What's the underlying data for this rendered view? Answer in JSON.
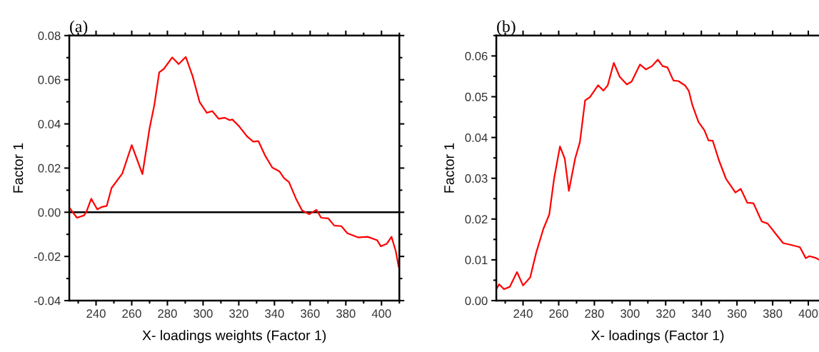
{
  "chart_data": [
    {
      "type": "line",
      "title": "(a)",
      "xlabel": "X- loadings weights (Factor 1)",
      "ylabel": "Factor 1",
      "grid": false,
      "legend": false,
      "marker": "none",
      "line_style": "solid",
      "xlim": [
        225,
        410
      ],
      "xticks": [
        240,
        260,
        280,
        300,
        320,
        340,
        360,
        380,
        400
      ],
      "ylim": [
        -0.04,
        0.08
      ],
      "yticks": [
        {
          "value": -0.04,
          "label": "-0.04"
        },
        {
          "value": -0.02,
          "label": "-0.02"
        },
        {
          "value": 0,
          "label": "0.00"
        },
        {
          "value": 0.02,
          "label": "0.02"
        },
        {
          "value": 0.04,
          "label": "0.04"
        },
        {
          "value": 0.06,
          "label": "0.06"
        },
        {
          "value": 0.08,
          "label": "0.08"
        }
      ],
      "ref_lines": [
        {
          "axis": "y",
          "value": 0,
          "color": "#000000",
          "line_style": "solid"
        }
      ],
      "series": [
        {
          "color": "#ff0000",
          "x": [
            225.3,
            229.3,
            233.3,
            234.6,
            237.3,
            240.7,
            243.3,
            246,
            248.7,
            254.7,
            260,
            266,
            270,
            272.7,
            275.4,
            278,
            282.7,
            286.3,
            290.3,
            294.1,
            298.1,
            302.1,
            305.1,
            308.8,
            312.1,
            314.8,
            316.4,
            320.1,
            324.8,
            328.1,
            331,
            334.8,
            338.8,
            342.8,
            345.5,
            348.1,
            352.1,
            355.5,
            359.5,
            363.5,
            366.2,
            370.2,
            373.5,
            377.5,
            380.9,
            386.9,
            392.2,
            397.6,
            399.6,
            402.9,
            405.6,
            408,
            409.6
          ],
          "values": [
            0.0018,
            -0.0025,
            -0.0014,
            0.0002,
            0.0061,
            0.0013,
            0.0024,
            0.0029,
            0.011,
            0.0175,
            0.0304,
            0.0173,
            0.038,
            0.0487,
            0.0633,
            0.0649,
            0.0701,
            0.0671,
            0.0703,
            0.0617,
            0.0498,
            0.045,
            0.0458,
            0.0423,
            0.0428,
            0.0417,
            0.042,
            0.039,
            0.0342,
            0.032,
            0.0322,
            0.0256,
            0.0202,
            0.0185,
            0.0153,
            0.0137,
            0.0061,
            0.0008,
            -0.0009,
            0.0011,
            -0.0025,
            -0.0028,
            -0.006,
            -0.0063,
            -0.0095,
            -0.0114,
            -0.0111,
            -0.0127,
            -0.0154,
            -0.0143,
            -0.0111,
            -0.0176,
            -0.0246
          ]
        }
      ]
    },
    {
      "type": "line",
      "title": "(b)",
      "xlabel": "X- loadings (Factor 1)",
      "ylabel": "Factor 1",
      "grid": false,
      "legend": false,
      "marker": "none",
      "line_style": "solid",
      "xlim": [
        225,
        406
      ],
      "xticks": [
        240,
        260,
        280,
        300,
        320,
        340,
        360,
        380,
        400
      ],
      "ylim": [
        0,
        0.065
      ],
      "yticks": [
        {
          "value": 0,
          "label": "0.00"
        },
        {
          "value": 0.01,
          "label": "0.01"
        },
        {
          "value": 0.02,
          "label": "0.02"
        },
        {
          "value": 0.03,
          "label": "0.03"
        },
        {
          "value": 0.04,
          "label": "0.04"
        },
        {
          "value": 0.05,
          "label": "0.05"
        },
        {
          "value": 0.06,
          "label": "0.06"
        }
      ],
      "series": [
        {
          "color": "#ff0000",
          "x": [
            225,
            226.6,
            229.3,
            232.6,
            236.6,
            240,
            244,
            247.4,
            251.4,
            254.7,
            257.4,
            260.7,
            263.4,
            265.7,
            269.2,
            271.9,
            274.8,
            277.5,
            282.1,
            285.1,
            287.5,
            290.9,
            294.2,
            298.2,
            300.9,
            305.6,
            308.9,
            312.3,
            315.6,
            318.3,
            321,
            324.3,
            327.3,
            331,
            333,
            335,
            338.4,
            341.7,
            344,
            346.4,
            349.8,
            353.8,
            359.1,
            362.1,
            365.8,
            369.2,
            373.9,
            377.2,
            382.6,
            385.9,
            389.9,
            395.3,
            398.6,
            400.6,
            404,
            405.7
          ],
          "values": [
            0.0028,
            0.004,
            0.0028,
            0.0034,
            0.007,
            0.0037,
            0.0057,
            0.0118,
            0.0176,
            0.0211,
            0.0299,
            0.0378,
            0.0348,
            0.0269,
            0.0348,
            0.0389,
            0.0491,
            0.0499,
            0.0528,
            0.0515,
            0.0528,
            0.0583,
            0.0549,
            0.053,
            0.0537,
            0.0579,
            0.0567,
            0.0575,
            0.0591,
            0.0575,
            0.0572,
            0.054,
            0.0538,
            0.0527,
            0.0514,
            0.0479,
            0.0438,
            0.0418,
            0.0393,
            0.0392,
            0.0345,
            0.0299,
            0.0265,
            0.0274,
            0.024,
            0.0239,
            0.0194,
            0.0189,
            0.0159,
            0.0141,
            0.0137,
            0.0131,
            0.0104,
            0.0109,
            0.0105,
            0.0101
          ]
        }
      ]
    }
  ]
}
